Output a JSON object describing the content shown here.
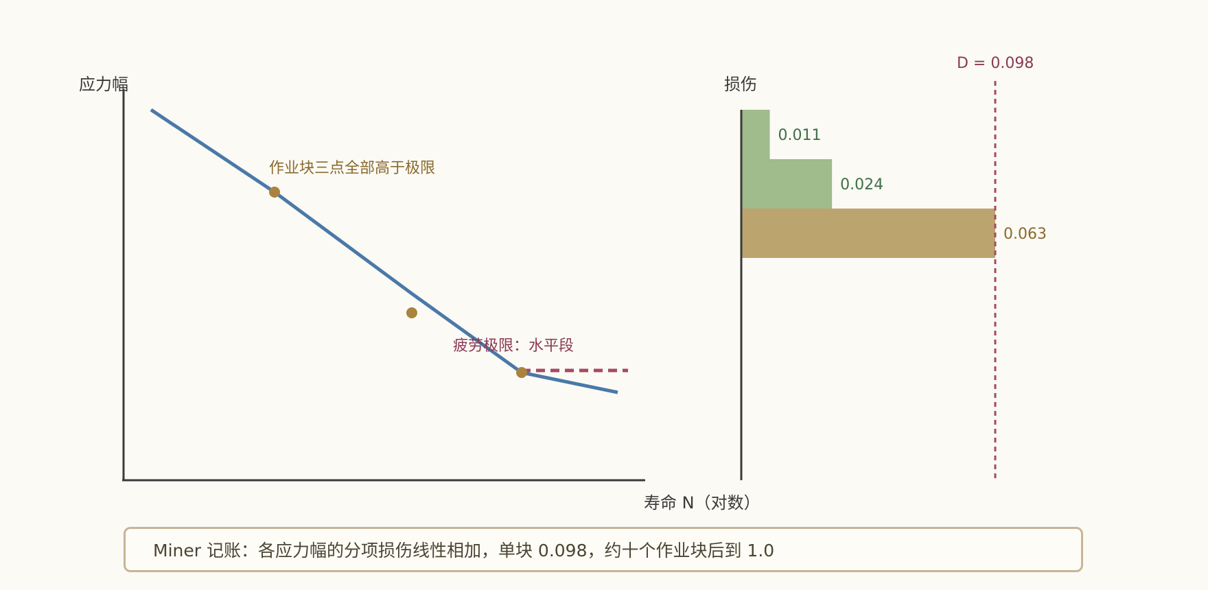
{
  "sn_chart": {
    "y_axis_label": "应力幅",
    "x_axis_label": "寿命 N（对数）",
    "annotation_above_limit": "作业块三点全部高于极限",
    "annotation_fatigue_limit": "疲劳极限：水平段",
    "colors": {
      "curve": "#4a79a8",
      "points": "#a8843f",
      "fatigue_limit": "#a54a63",
      "axis": "#3a3a3a",
      "annotation_above": "#8a6a2c",
      "annotation_limit": "#8a3a55"
    }
  },
  "damage_chart": {
    "y_axis_label": "损伤",
    "total_label": "D = 0.098",
    "colors": {
      "green_bar": "#a0bb8c",
      "tan_bar": "#bca46f",
      "green_text": "#3f6f45",
      "tan_text": "#8a6a2c",
      "total_line": "#a54a63"
    }
  },
  "note": {
    "text": "Miner 记账：各应力幅的分项损伤线性相加，单块 0.098，约十个作业块后到 1.0"
  },
  "chart_data": [
    {
      "type": "line",
      "xlabel": "寿命 N（对数）",
      "ylabel": "应力幅",
      "x_scale": "log",
      "grid": false,
      "series": [],
      "points_count_on_curve": 3,
      "annotations": [
        "作业块三点全部高于极限",
        "疲劳极限：水平段"
      ]
    },
    {
      "type": "bar",
      "orientation": "horizontal",
      "ylabel": "损伤",
      "values": [
        0.011,
        0.024,
        0.063
      ],
      "bar_colors": [
        "#a0bb8c",
        "#a0bb8c",
        "#bca46f"
      ],
      "value_labels": [
        "0.011",
        "0.024",
        "0.063"
      ],
      "total": 0.098,
      "total_label": "D = 0.098",
      "stacked_cumulative": true
    }
  ]
}
